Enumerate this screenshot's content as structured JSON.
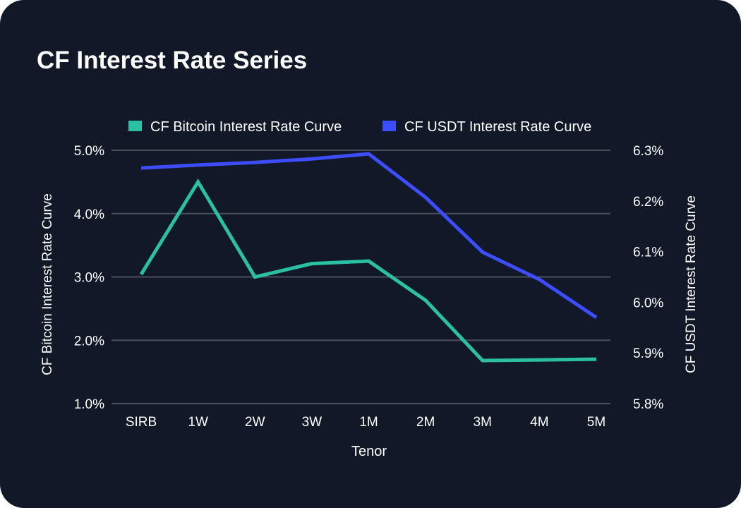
{
  "title": "CF Interest Rate Series",
  "chart_data": {
    "type": "line",
    "title": "CF Interest Rate Series",
    "xlabel": "Tenor",
    "ylabel_left": "CF Bitcoin Interest Rate Curve",
    "ylabel_right": "CF USDT Interest Rate Curve",
    "categories": [
      "SIRB",
      "1W",
      "2W",
      "3W",
      "1M",
      "2M",
      "3M",
      "4M",
      "5M"
    ],
    "y_left": {
      "min": 1.0,
      "max": 5.0,
      "ticks": [
        "1.0%",
        "2.0%",
        "3.0%",
        "4.0%",
        "5.0%"
      ],
      "tick_values": [
        1,
        2,
        3,
        4,
        5
      ]
    },
    "y_right": {
      "min": 5.8,
      "max": 6.3,
      "ticks": [
        "5.8%",
        "5.9%",
        "6.0%",
        "6.1%",
        "6.2%",
        "6.3%"
      ],
      "tick_values": [
        5.8,
        5.9,
        6.0,
        6.1,
        6.2,
        6.3
      ]
    },
    "grid": true,
    "legend_position": "top",
    "series": [
      {
        "name": "CF Bitcoin Interest Rate Curve",
        "axis": "left",
        "color": "#2bbfa4",
        "values": [
          3.04,
          4.5,
          3.0,
          3.21,
          3.25,
          2.63,
          1.68,
          1.69,
          1.7
        ]
      },
      {
        "name": "CF USDT Interest Rate Curve",
        "axis": "right",
        "color": "#3d4cff",
        "values": [
          6.265,
          6.271,
          6.276,
          6.283,
          6.293,
          6.207,
          6.099,
          6.045,
          5.97
        ]
      }
    ]
  }
}
